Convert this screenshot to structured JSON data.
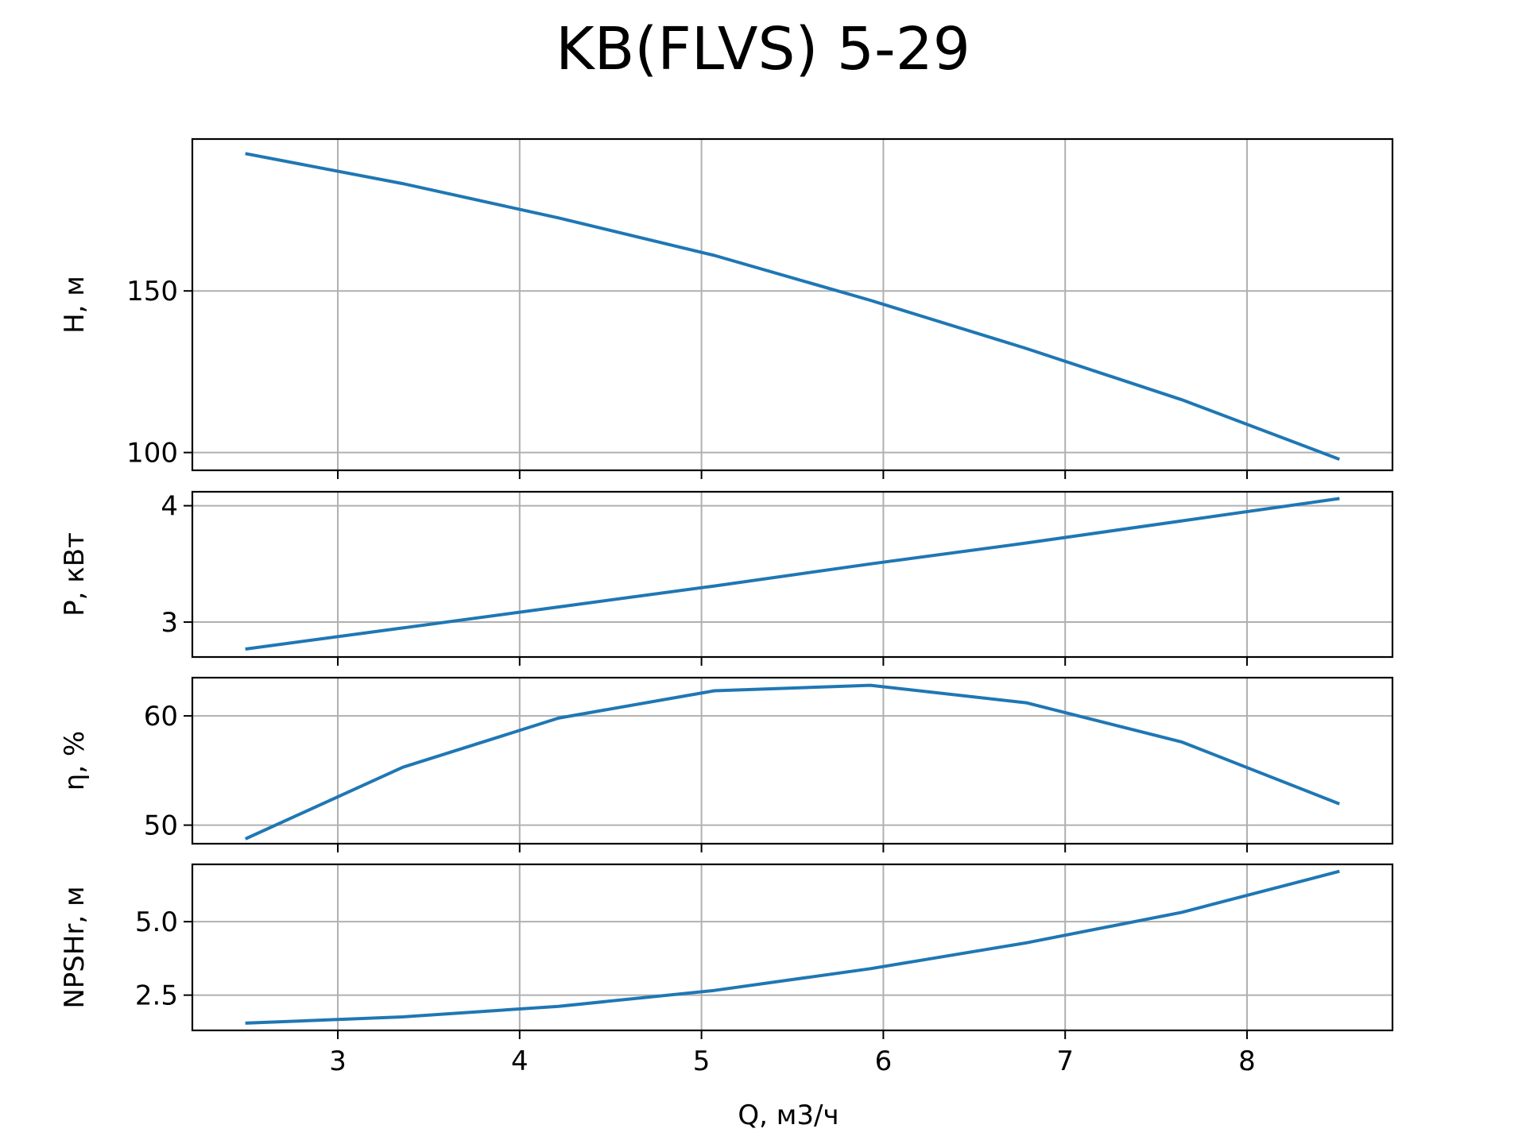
{
  "chart_data": {
    "title": "KB(FLVS) 5-29",
    "type": "line",
    "xlabel": "Q, м3/ч",
    "xlim": [
      2.2,
      8.8
    ],
    "xticks": [
      3,
      4,
      5,
      6,
      7,
      8
    ],
    "xtick_labels": [
      "3",
      "4",
      "5",
      "6",
      "7",
      "8"
    ],
    "grid": true,
    "line_color": "#1f77b4",
    "panels": [
      {
        "ylabel": "H, м",
        "ylim": [
          94.5,
          197.0
        ],
        "yticks": [
          100,
          150
        ],
        "ytick_labels": [
          "100",
          "150"
        ],
        "x": [
          2.5,
          3.357,
          4.214,
          5.071,
          5.929,
          6.786,
          7.643,
          8.5
        ],
        "y": [
          192.4,
          183.2,
          172.6,
          161.0,
          147.1,
          132.2,
          116.3,
          98.1
        ]
      },
      {
        "ylabel": "P, кВт",
        "ylim": [
          2.7,
          4.12
        ],
        "yticks": [
          3,
          4
        ],
        "ytick_labels": [
          "3",
          "4"
        ],
        "x": [
          2.5,
          3.357,
          4.214,
          5.071,
          5.929,
          6.786,
          7.643,
          8.5
        ],
        "y": [
          2.77,
          2.95,
          3.13,
          3.31,
          3.5,
          3.68,
          3.87,
          4.06
        ]
      },
      {
        "ylabel": "η, %",
        "ylim": [
          48.3,
          63.5
        ],
        "yticks": [
          50,
          60
        ],
        "ytick_labels": [
          "50",
          "60"
        ],
        "x": [
          2.5,
          3.357,
          4.214,
          5.071,
          5.929,
          6.786,
          7.643,
          8.5
        ],
        "y": [
          48.8,
          55.3,
          59.8,
          62.3,
          62.8,
          61.2,
          57.6,
          52.0
        ]
      },
      {
        "ylabel": "NPSHr, м",
        "ylim": [
          1.3,
          6.95
        ],
        "yticks": [
          2.5,
          5.0
        ],
        "ytick_labels": [
          "2.5",
          "5.0"
        ],
        "x": [
          2.5,
          3.357,
          4.214,
          5.071,
          5.929,
          6.786,
          7.643,
          8.5
        ],
        "y": [
          1.55,
          1.76,
          2.12,
          2.66,
          3.4,
          4.28,
          5.32,
          6.7
        ]
      }
    ]
  }
}
